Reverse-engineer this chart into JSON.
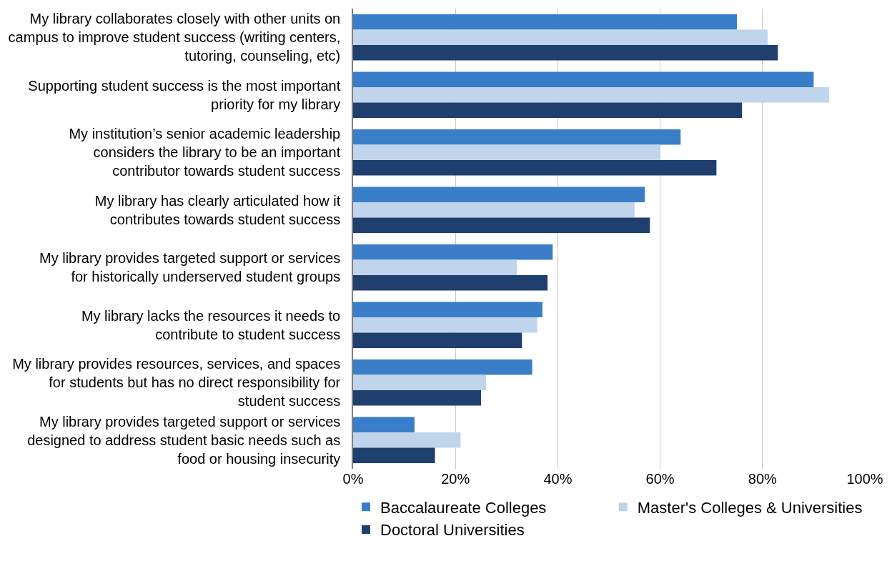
{
  "chart_data": {
    "type": "bar",
    "orientation": "horizontal",
    "categories": [
      "My library collaborates closely with other units on campus to improve student success (writing centers, tutoring, counseling, etc)",
      "Supporting student success is the most important priority for my library",
      "My institution’s senior academic leadership considers the library to be an important contributor towards student success",
      "My library has clearly articulated how it contributes towards student success",
      "My library provides targeted support or services for historically underserved student groups",
      "My library lacks the resources it needs to contribute to student success",
      "My library provides resources, services, and spaces for students but has no direct responsibility for student success",
      "My library provides targeted support or services designed to address student basic needs such as food or housing insecurity"
    ],
    "series": [
      {
        "name": "Baccalaureate Colleges",
        "color": "#3a7dc9",
        "values": [
          75,
          90,
          64,
          57,
          39,
          37,
          35,
          12
        ]
      },
      {
        "name": "Master's Colleges & Universities",
        "color": "#c0d4eb",
        "values": [
          81,
          93,
          60,
          55,
          32,
          36,
          26,
          21
        ]
      },
      {
        "name": "Doctoral Universities",
        "color": "#1f3f6e",
        "values": [
          83,
          76,
          71,
          58,
          38,
          33,
          25,
          16
        ]
      }
    ],
    "xlim": [
      0,
      100
    ],
    "xticks": [
      {
        "value": 0,
        "label": "0%"
      },
      {
        "value": 20,
        "label": "20%"
      },
      {
        "value": 40,
        "label": "40%"
      },
      {
        "value": 60,
        "label": "60%"
      },
      {
        "value": 80,
        "label": "80%"
      },
      {
        "value": 100,
        "label": "100%"
      }
    ],
    "grid": "x",
    "legend": "bottom"
  }
}
